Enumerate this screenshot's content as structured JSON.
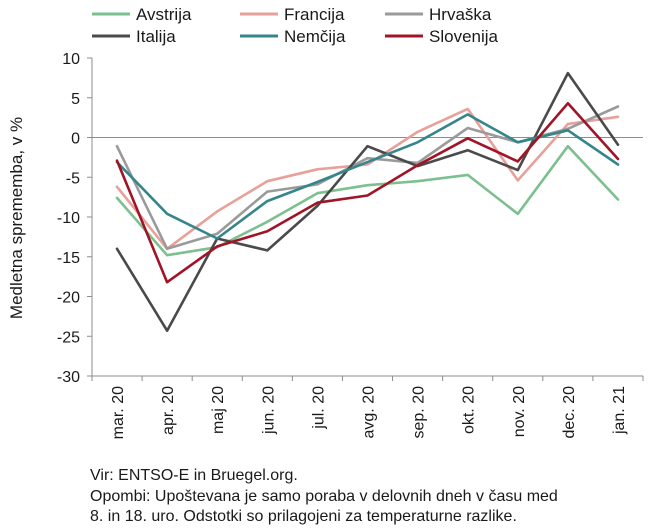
{
  "chart_data": {
    "type": "line",
    "title": "",
    "xlabel": "",
    "ylabel": "Medletna sprememba, v %",
    "ylim": [
      -30,
      10
    ],
    "yticks": [
      10,
      5,
      0,
      -5,
      -10,
      -15,
      -20,
      -25,
      -30
    ],
    "grid": false,
    "legend_position": "top",
    "categories": [
      "mar. 20",
      "apr. 20",
      "maj 20",
      "jun. 20",
      "jul. 20",
      "avg. 20",
      "sep. 20",
      "okt. 20",
      "nov. 20",
      "dec. 20",
      "jan. 21"
    ],
    "series": [
      {
        "name": "Avstrija",
        "color": "#7cc08f",
        "values": [
          -7.6,
          -14.8,
          -13.8,
          -10.6,
          -7.0,
          -6.0,
          -5.5,
          -4.7,
          -9.6,
          -1.1,
          -7.8
        ]
      },
      {
        "name": "Francija",
        "color": "#e8a09a",
        "values": [
          -6.2,
          -14.0,
          -9.3,
          -5.5,
          -4.0,
          -3.4,
          0.7,
          3.6,
          -5.4,
          1.7,
          2.6
        ]
      },
      {
        "name": "Hrvaška",
        "color": "#9a9a9a",
        "values": [
          -1.1,
          -14.0,
          -12.1,
          -6.8,
          -5.9,
          -2.6,
          -3.2,
          1.2,
          -0.6,
          1.1,
          3.9
        ]
      },
      {
        "name": "Italija",
        "color": "#4a4a4a",
        "values": [
          -14.0,
          -24.3,
          -12.7,
          -14.2,
          -8.6,
          -1.1,
          -3.6,
          -1.6,
          -4.1,
          8.1,
          -0.9
        ]
      },
      {
        "name": "Nemčija",
        "color": "#35868a",
        "values": [
          -3.1,
          -9.6,
          -12.7,
          -8.0,
          -5.6,
          -3.1,
          -0.6,
          2.9,
          -0.6,
          0.9,
          -3.4
        ]
      },
      {
        "name": "Slovenija",
        "color": "#a01426",
        "values": [
          -2.9,
          -18.2,
          -13.7,
          -11.8,
          -8.2,
          -7.3,
          -3.5,
          -0.1,
          -3.0,
          4.3,
          -2.7
        ]
      }
    ]
  },
  "footnotes": [
    "Vir: ENTSO-E in Bruegel.org.",
    "Opombi: Upoštevana je samo poraba v delovnih dneh v času med",
    "8. in 18. uro. Odstotki so prilagojeni za temperaturne razlike."
  ]
}
